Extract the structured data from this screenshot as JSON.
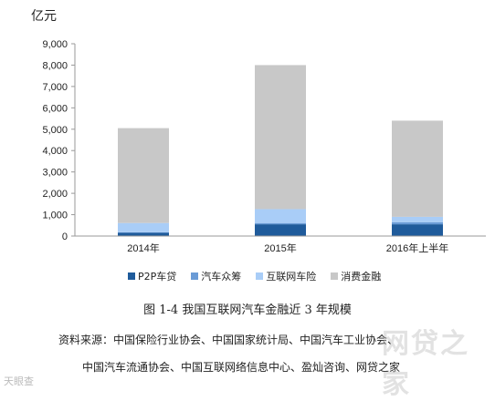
{
  "chart_data": {
    "type": "bar",
    "stacked": true,
    "unit": "亿元",
    "categories": [
      "2014年",
      "2015年",
      "2016年上半年"
    ],
    "series": [
      {
        "name": "P2P车贷",
        "color": "#1f5b9b",
        "values": [
          150,
          550,
          550
        ]
      },
      {
        "name": "汽车众筹",
        "color": "#6a9bd6",
        "values": [
          30,
          60,
          100
        ]
      },
      {
        "name": "互联网车险",
        "color": "#a9cdf7",
        "values": [
          430,
          650,
          250
        ]
      },
      {
        "name": "消费金融",
        "color": "#c8c8c8",
        "values": [
          4440,
          6740,
          4500
        ]
      }
    ],
    "ylim": [
      0,
      9000
    ],
    "yticks": [
      "0",
      "1,000",
      "2,000",
      "3,000",
      "4,000",
      "5,000",
      "6,000",
      "7,000",
      "8,000",
      "9,000"
    ],
    "grid": false,
    "legend_position": "bottom"
  },
  "caption": "图 1-4 我国互联网汽车金融近 3 年规模",
  "source_line1": "资料来源：中国保险行业协会、中国国家统计局、中国汽车工业协会、",
  "source_line2": "中国汽车流通协会、中国互联网络信息中心、盈灿咨询、网贷之家",
  "watermark_left": "天眼查",
  "watermark_right": "网贷之家"
}
